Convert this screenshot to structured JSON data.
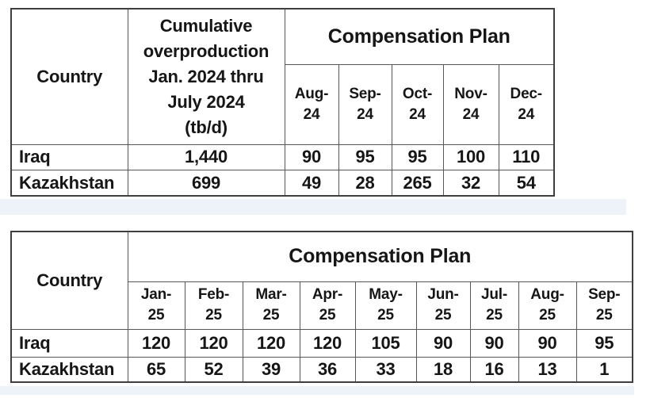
{
  "colors": {
    "background": "#ffffff",
    "table_border": "#3f3f3f",
    "text": "#161616",
    "strip": "#eef3f9"
  },
  "table_2024": {
    "headers": {
      "country": "Country",
      "overproduction": "Cumulative\noverproduction\nJan. 2024 thru\nJuly 2024\n(tb/d)",
      "plan": "Compensation Plan"
    },
    "months": [
      "Aug-24",
      "Sep-24",
      "Oct-24",
      "Nov-24",
      "Dec-24"
    ],
    "rows": [
      {
        "country": "Iraq",
        "overproduction": "1,440",
        "values": [
          "90",
          "95",
          "95",
          "100",
          "110"
        ]
      },
      {
        "country": "Kazakhstan",
        "overproduction": "699",
        "values": [
          "49",
          "28",
          "265",
          "32",
          "54"
        ]
      }
    ]
  },
  "table_2025": {
    "headers": {
      "country": "Country",
      "plan": "Compensation Plan"
    },
    "months": [
      "Jan-25",
      "Feb-25",
      "Mar-25",
      "Apr-25",
      "May-25",
      "Jun-25",
      "Jul-25",
      "Aug-25",
      "Sep-25"
    ],
    "rows": [
      {
        "country": "Iraq",
        "values": [
          "120",
          "120",
          "120",
          "120",
          "105",
          "90",
          "90",
          "90",
          "95"
        ]
      },
      {
        "country": "Kazakhstan",
        "values": [
          "65",
          "52",
          "39",
          "36",
          "33",
          "18",
          "16",
          "13",
          "1"
        ]
      }
    ]
  }
}
